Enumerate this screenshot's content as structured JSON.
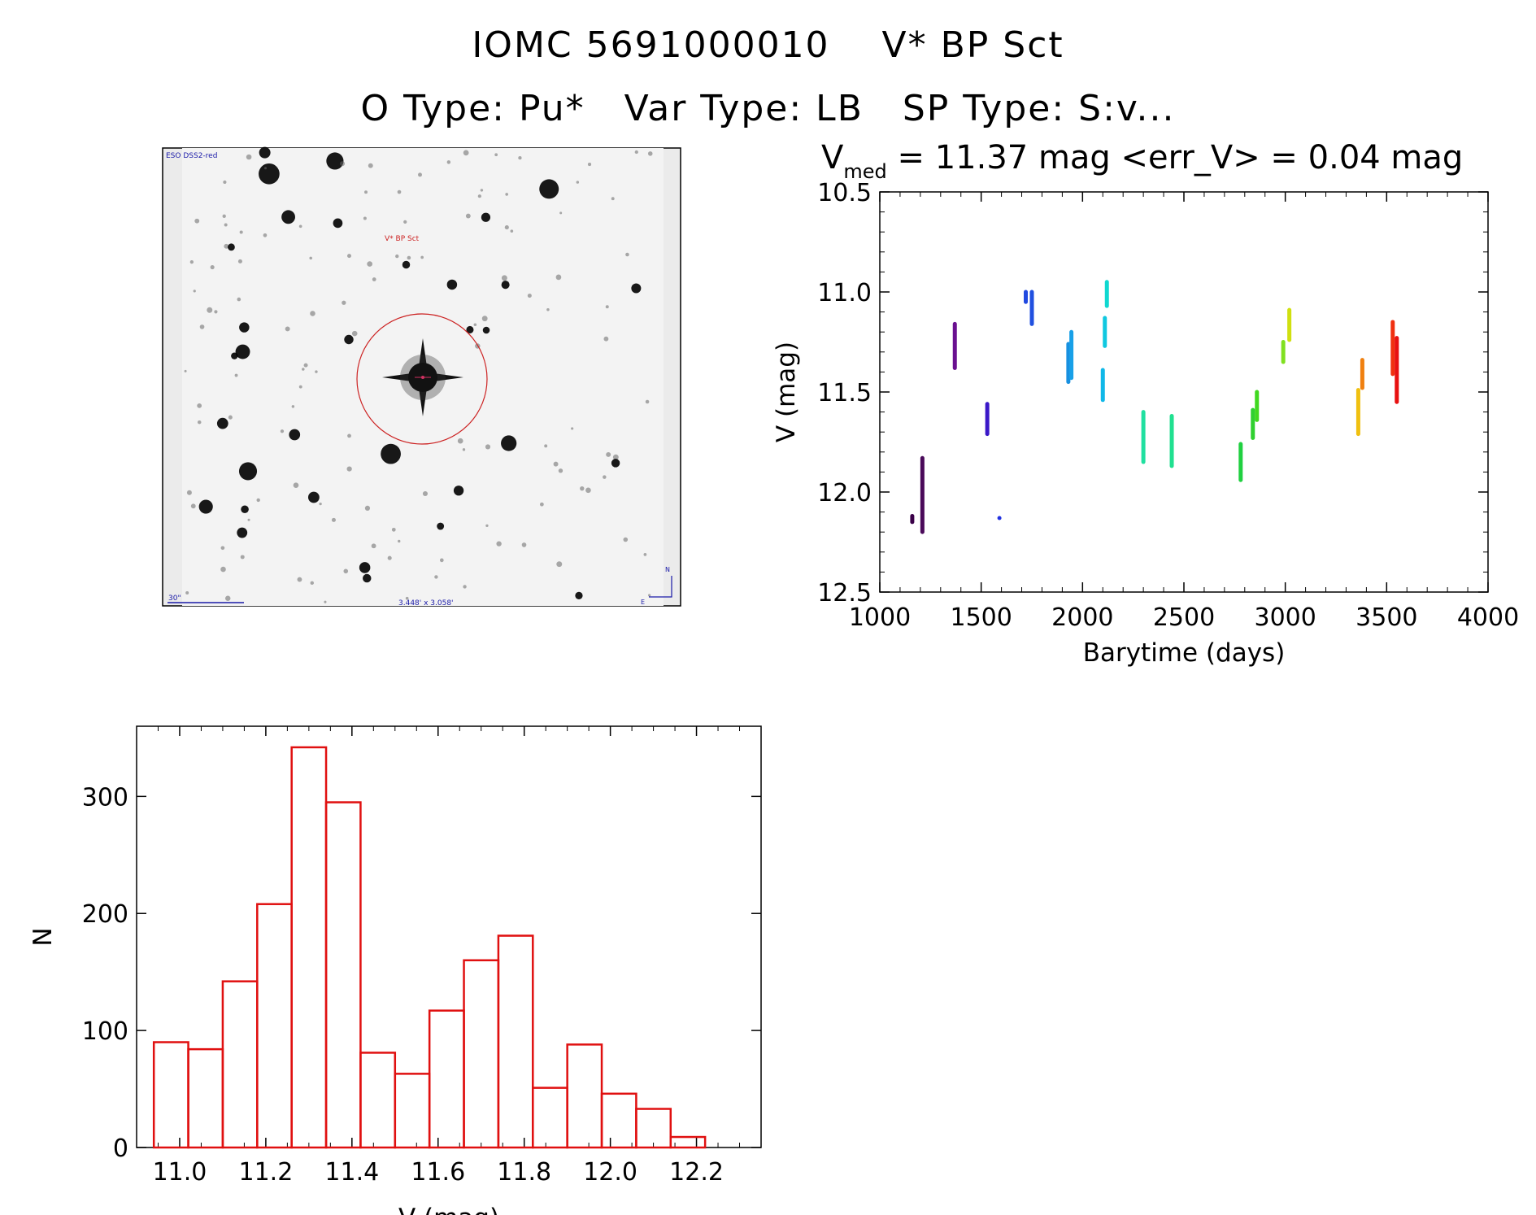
{
  "header": {
    "title_line1": "IOMC 5691000010    V* BP Sct",
    "title_line2": "O Type: Pu*   Var Type: LB   SP Type: S:v..."
  },
  "finder": {
    "survey_label": "ESO DSS2-red",
    "target_label": "V* BP Sct",
    "scale_label": "30\"",
    "fov_label": "3.448' x 3.058'",
    "north_label": "N",
    "east_label": "E",
    "label_color": "#1a1aa8",
    "target_color": "#cc2222"
  },
  "chart_data": [
    {
      "type": "scatter",
      "name": "light-curve",
      "title_main": "V",
      "title_sub": "med",
      "title_rest": " = 11.37 mag <err_V> = 0.04 mag",
      "xlabel": "Barytime (days)",
      "ylabel": "V (mag)",
      "xlim": [
        1000,
        4000
      ],
      "ylim": [
        12.5,
        10.5
      ],
      "y_inverted": true,
      "xticks": [
        1000,
        1500,
        2000,
        2500,
        3000,
        3500,
        4000
      ],
      "yticks": [
        "10.5",
        "11.0",
        "11.5",
        "12.0",
        "12.5"
      ],
      "segments": [
        {
          "x": 1160,
          "y_min": 12.11,
          "y_max": 12.16,
          "color": "#3a0048"
        },
        {
          "x": 1210,
          "y_min": 11.82,
          "y_max": 12.21,
          "color": "#4a0a5a"
        },
        {
          "x": 1370,
          "y_min": 11.15,
          "y_max": 11.39,
          "color": "#6a1090"
        },
        {
          "x": 1530,
          "y_min": 11.55,
          "y_max": 11.72,
          "color": "#3a18c8"
        },
        {
          "x": 1590,
          "y_min": 12.12,
          "y_max": 12.14,
          "color": "#2030e0"
        },
        {
          "x": 1720,
          "y_min": 10.99,
          "y_max": 11.06,
          "color": "#2048e0"
        },
        {
          "x": 1750,
          "y_min": 10.99,
          "y_max": 11.17,
          "color": "#2050e0"
        },
        {
          "x": 1930,
          "y_min": 11.25,
          "y_max": 11.46,
          "color": "#1890e0"
        },
        {
          "x": 1945,
          "y_min": 11.19,
          "y_max": 11.44,
          "color": "#18a0e8"
        },
        {
          "x": 2100,
          "y_min": 11.38,
          "y_max": 11.55,
          "color": "#10b8e8"
        },
        {
          "x": 2110,
          "y_min": 11.12,
          "y_max": 11.28,
          "color": "#10c8e0"
        },
        {
          "x": 2120,
          "y_min": 10.94,
          "y_max": 11.08,
          "color": "#10d8d0"
        },
        {
          "x": 2300,
          "y_min": 11.59,
          "y_max": 11.86,
          "color": "#20e0a0"
        },
        {
          "x": 2440,
          "y_min": 11.61,
          "y_max": 11.88,
          "color": "#20e090"
        },
        {
          "x": 2780,
          "y_min": 11.75,
          "y_max": 11.95,
          "color": "#20d040"
        },
        {
          "x": 2840,
          "y_min": 11.58,
          "y_max": 11.74,
          "color": "#30d030"
        },
        {
          "x": 2860,
          "y_min": 11.49,
          "y_max": 11.65,
          "color": "#40d820"
        },
        {
          "x": 2990,
          "y_min": 11.24,
          "y_max": 11.36,
          "color": "#80e020"
        },
        {
          "x": 3020,
          "y_min": 11.08,
          "y_max": 11.25,
          "color": "#d0e010"
        },
        {
          "x": 3360,
          "y_min": 11.48,
          "y_max": 11.72,
          "color": "#f0c010"
        },
        {
          "x": 3380,
          "y_min": 11.33,
          "y_max": 11.49,
          "color": "#f08010"
        },
        {
          "x": 3530,
          "y_min": 11.14,
          "y_max": 11.42,
          "color": "#f03010"
        },
        {
          "x": 3550,
          "y_min": 11.22,
          "y_max": 11.56,
          "color": "#e81010"
        }
      ]
    },
    {
      "type": "bar",
      "name": "histogram",
      "xlabel": "V (mag)",
      "ylabel": "N",
      "xlim": [
        10.9,
        12.35
      ],
      "ylim": [
        0,
        360
      ],
      "xticks": [
        "11.0",
        "11.2",
        "11.4",
        "11.6",
        "11.8",
        "12.0",
        "12.2"
      ],
      "yticks": [
        "0",
        "100",
        "200",
        "300"
      ],
      "bin_width": 0.08,
      "bar_color": "#e01010",
      "bin_starts": [
        10.94,
        11.02,
        11.1,
        11.18,
        11.26,
        11.34,
        11.42,
        11.5,
        11.58,
        11.66,
        11.74,
        11.82,
        11.9,
        11.98,
        12.06,
        12.14
      ],
      "values": [
        90,
        84,
        142,
        208,
        342,
        295,
        81,
        63,
        117,
        160,
        181,
        51,
        88,
        46,
        33,
        9
      ]
    }
  ]
}
